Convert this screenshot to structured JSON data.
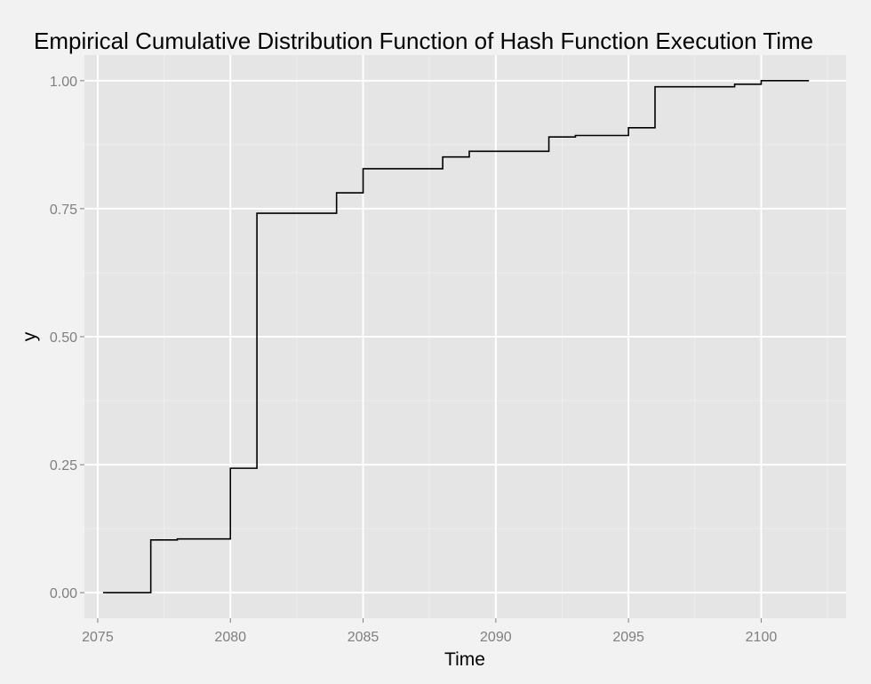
{
  "chart_data": {
    "type": "line",
    "step": true,
    "title": "Empirical Cumulative Distribution Function of Hash Function Execution Time",
    "xlabel": "Time",
    "ylabel": "y",
    "xlim": [
      2074.5,
      2103.2
    ],
    "ylim": [
      -0.05,
      1.05
    ],
    "x_ticks": [
      2075,
      2080,
      2085,
      2090,
      2095,
      2100
    ],
    "x_tick_labels": [
      "2075",
      "2080",
      "2085",
      "2090",
      "2095",
      "2100"
    ],
    "y_ticks": [
      0,
      0.25,
      0.5,
      0.75,
      1
    ],
    "y_tick_labels": [
      "0.00",
      "0.25",
      "0.50",
      "0.75",
      "1.00"
    ],
    "grid": true,
    "colors": {
      "panel": "#e5e5e5",
      "background": "#f2f2f2",
      "grid_major": "#ffffff",
      "grid_minor": "#ededed",
      "line": "#000000",
      "tick_text": "#7f7f7f"
    },
    "series": [
      {
        "x": [
          2075.2,
          2077,
          2078,
          2080,
          2081,
          2084,
          2085,
          2088,
          2089,
          2092,
          2093,
          2095,
          2096,
          2099,
          2100,
          2101.8
        ],
        "y": [
          0.0,
          0.103,
          0.105,
          0.243,
          0.741,
          0.781,
          0.828,
          0.851,
          0.862,
          0.89,
          0.893,
          0.908,
          0.988,
          0.993,
          1.0,
          1.0
        ]
      }
    ]
  }
}
